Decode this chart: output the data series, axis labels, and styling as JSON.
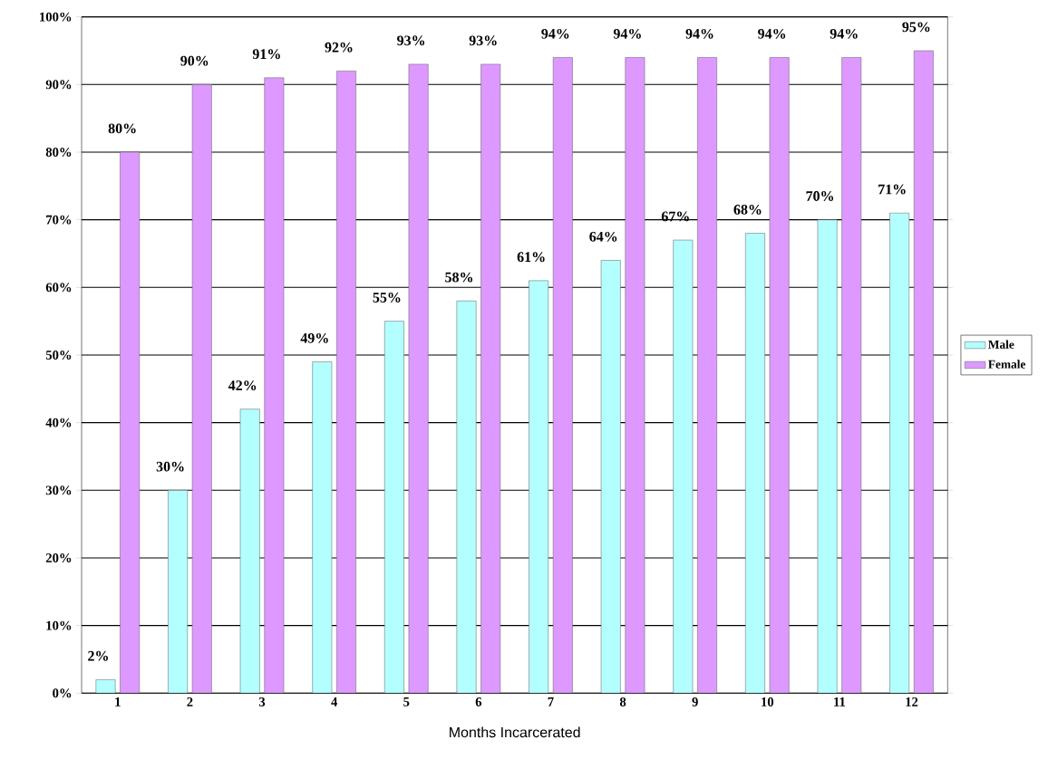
{
  "chart_data": {
    "type": "bar",
    "xlabel": "Months Incarcerated",
    "categories": [
      "1",
      "2",
      "3",
      "4",
      "5",
      "6",
      "7",
      "8",
      "9",
      "10",
      "11",
      "12"
    ],
    "series": [
      {
        "name": "Male",
        "color": "#b3ffff",
        "values": [
          2,
          30,
          42,
          49,
          55,
          58,
          61,
          64,
          67,
          68,
          70,
          71
        ],
        "value_labels": [
          "2%",
          "30%",
          "42%",
          "49%",
          "55%",
          "58%",
          "61%",
          "64%",
          "67%",
          "68%",
          "70%",
          "71%"
        ]
      },
      {
        "name": "Female",
        "color": "#dd99ff",
        "values": [
          80,
          90,
          91,
          92,
          93,
          93,
          94,
          94,
          94,
          94,
          94,
          95
        ],
        "value_labels": [
          "80%",
          "90%",
          "91%",
          "92%",
          "93%",
          "93%",
          "94%",
          "94%",
          "94%",
          "94%",
          "94%",
          "95%"
        ]
      }
    ],
    "ylim": [
      0,
      100
    ],
    "yticks": [
      {
        "value": 0,
        "label": "0%"
      },
      {
        "value": 10,
        "label": "10%"
      },
      {
        "value": 20,
        "label": "20%"
      },
      {
        "value": 30,
        "label": "30%"
      },
      {
        "value": 40,
        "label": "40%"
      },
      {
        "value": 50,
        "label": "50%"
      },
      {
        "value": 60,
        "label": "60%"
      },
      {
        "value": 70,
        "label": "70%"
      },
      {
        "value": 80,
        "label": "80%"
      },
      {
        "value": 90,
        "label": "90%"
      },
      {
        "value": 100,
        "label": "100%"
      }
    ],
    "grid": "y",
    "legend": "right"
  }
}
